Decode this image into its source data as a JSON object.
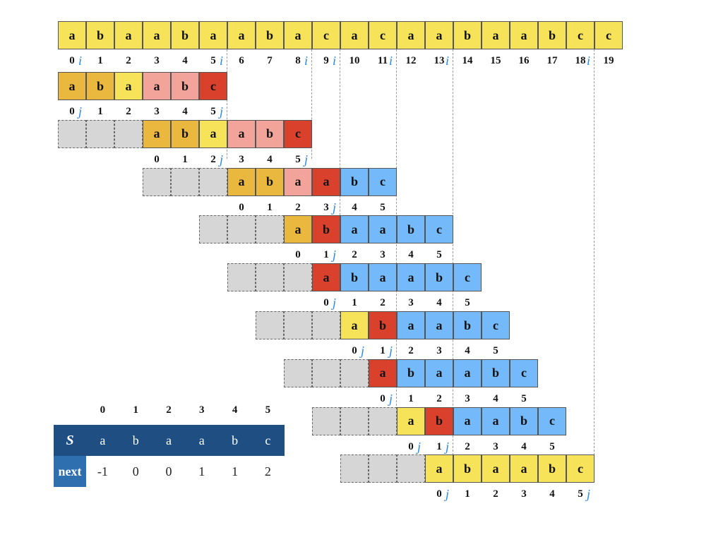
{
  "colors": {
    "text_cell": "#f6e35a",
    "matched_prefix": "#eab83e",
    "matched": "#f2a49b",
    "mismatch": "#d9412c",
    "pending": "#74bafa",
    "empty": "#d6d6d6",
    "pointer": "#2e86de",
    "table_header": "#1e4e82",
    "table_next_label": "#2e6fb0"
  },
  "text": {
    "chars": [
      "a",
      "b",
      "a",
      "a",
      "b",
      "a",
      "a",
      "b",
      "a",
      "c",
      "a",
      "c",
      "a",
      "a",
      "b",
      "a",
      "a",
      "b",
      "c",
      "c"
    ],
    "indices": [
      "0",
      "1",
      "2",
      "3",
      "4",
      "5",
      "6",
      "7",
      "8",
      "9",
      "10",
      "11",
      "12",
      "13",
      "14",
      "15",
      "16",
      "17",
      "18",
      "19"
    ],
    "i_marker": "i",
    "i_positions": [
      0,
      5,
      8,
      9,
      11,
      13,
      18
    ]
  },
  "pattern_rows": [
    {
      "offset": 0,
      "cells": [
        {
          "ch": "a",
          "state": "matched_prefix"
        },
        {
          "ch": "b",
          "state": "matched_prefix"
        },
        {
          "ch": "a",
          "state": "text_cell"
        },
        {
          "ch": "a",
          "state": "matched"
        },
        {
          "ch": "b",
          "state": "matched"
        },
        {
          "ch": "c",
          "state": "mismatch"
        }
      ],
      "indices": [
        "0",
        "1",
        "2",
        "3",
        "4",
        "5"
      ],
      "j_at": [
        0,
        5
      ]
    },
    {
      "offset": 3,
      "cells": [
        {
          "ch": "a",
          "state": "matched_prefix"
        },
        {
          "ch": "b",
          "state": "matched_prefix"
        },
        {
          "ch": "a",
          "state": "text_cell"
        },
        {
          "ch": "a",
          "state": "matched"
        },
        {
          "ch": "b",
          "state": "matched"
        },
        {
          "ch": "c",
          "state": "mismatch"
        }
      ],
      "indices": [
        "0",
        "1",
        "2",
        "3",
        "4",
        "5"
      ],
      "j_at": [
        2,
        5
      ]
    },
    {
      "offset": 6,
      "cells": [
        {
          "ch": "a",
          "state": "matched_prefix"
        },
        {
          "ch": "b",
          "state": "matched_prefix"
        },
        {
          "ch": "a",
          "state": "matched"
        },
        {
          "ch": "a",
          "state": "mismatch"
        },
        {
          "ch": "b",
          "state": "pending"
        },
        {
          "ch": "c",
          "state": "pending"
        }
      ],
      "indices": [
        "0",
        "1",
        "2",
        "3",
        "4",
        "5"
      ],
      "j_at": [
        3
      ]
    },
    {
      "offset": 8,
      "cells": [
        {
          "ch": "a",
          "state": "matched_prefix"
        },
        {
          "ch": "b",
          "state": "mismatch"
        },
        {
          "ch": "a",
          "state": "pending"
        },
        {
          "ch": "a",
          "state": "pending"
        },
        {
          "ch": "b",
          "state": "pending"
        },
        {
          "ch": "c",
          "state": "pending"
        }
      ],
      "indices": [
        "0",
        "1",
        "2",
        "3",
        "4",
        "5"
      ],
      "j_at": [
        1
      ]
    },
    {
      "offset": 9,
      "cells": [
        {
          "ch": "a",
          "state": "mismatch"
        },
        {
          "ch": "b",
          "state": "pending"
        },
        {
          "ch": "a",
          "state": "pending"
        },
        {
          "ch": "a",
          "state": "pending"
        },
        {
          "ch": "b",
          "state": "pending"
        },
        {
          "ch": "c",
          "state": "pending"
        }
      ],
      "indices": [
        "0",
        "1",
        "2",
        "3",
        "4",
        "5"
      ],
      "j_at": [
        0
      ]
    },
    {
      "offset": 10,
      "cells": [
        {
          "ch": "a",
          "state": "text_cell"
        },
        {
          "ch": "b",
          "state": "mismatch"
        },
        {
          "ch": "a",
          "state": "pending"
        },
        {
          "ch": "a",
          "state": "pending"
        },
        {
          "ch": "b",
          "state": "pending"
        },
        {
          "ch": "c",
          "state": "pending"
        }
      ],
      "indices": [
        "0",
        "1",
        "2",
        "3",
        "4",
        "5"
      ],
      "j_at": [
        0,
        1
      ]
    },
    {
      "offset": 11,
      "cells": [
        {
          "ch": "a",
          "state": "mismatch"
        },
        {
          "ch": "b",
          "state": "pending"
        },
        {
          "ch": "a",
          "state": "pending"
        },
        {
          "ch": "a",
          "state": "pending"
        },
        {
          "ch": "b",
          "state": "pending"
        },
        {
          "ch": "c",
          "state": "pending"
        }
      ],
      "indices": [
        "0",
        "1",
        "2",
        "3",
        "4",
        "5"
      ],
      "j_at": [
        0
      ]
    },
    {
      "offset": 12,
      "cells": [
        {
          "ch": "a",
          "state": "text_cell"
        },
        {
          "ch": "b",
          "state": "mismatch"
        },
        {
          "ch": "a",
          "state": "pending"
        },
        {
          "ch": "a",
          "state": "pending"
        },
        {
          "ch": "b",
          "state": "pending"
        },
        {
          "ch": "c",
          "state": "pending"
        }
      ],
      "indices": [
        "0",
        "1",
        "2",
        "3",
        "4",
        "5"
      ],
      "j_at": [
        0,
        1
      ]
    },
    {
      "offset": 13,
      "cells": [
        {
          "ch": "a",
          "state": "text_cell"
        },
        {
          "ch": "b",
          "state": "text_cell"
        },
        {
          "ch": "a",
          "state": "text_cell"
        },
        {
          "ch": "a",
          "state": "text_cell"
        },
        {
          "ch": "b",
          "state": "text_cell"
        },
        {
          "ch": "c",
          "state": "text_cell"
        }
      ],
      "indices": [
        "0",
        "1",
        "2",
        "3",
        "4",
        "5"
      ],
      "j_at": [
        0,
        5
      ]
    }
  ],
  "j_marker": "j",
  "next_table": {
    "indices": [
      "0",
      "1",
      "2",
      "3",
      "4",
      "5"
    ],
    "s_label": "S",
    "s_values": [
      "a",
      "b",
      "a",
      "a",
      "b",
      "c"
    ],
    "next_label": "next",
    "next_values": [
      "-1",
      "0",
      "0",
      "1",
      "1",
      "2"
    ]
  }
}
